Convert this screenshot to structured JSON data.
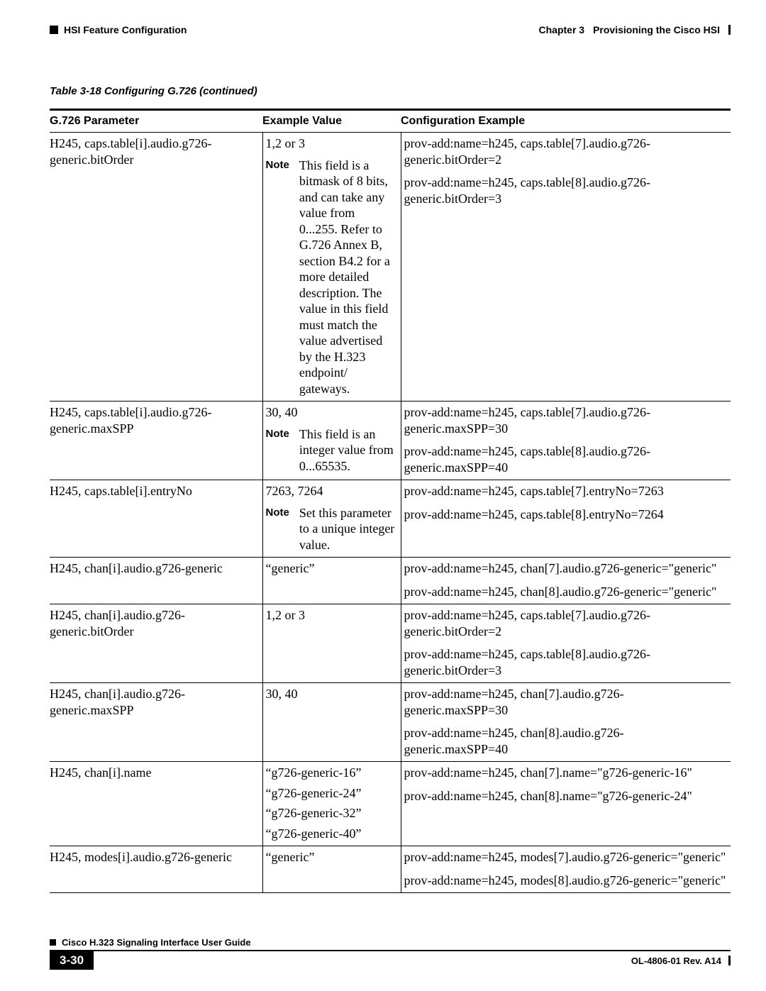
{
  "header": {
    "section_title": "HSI Feature Configuration",
    "chapter_label": "Chapter 3",
    "chapter_title": "Provisioning the Cisco HSI"
  },
  "table_caption": "Table 3-18   Configuring G.726 (continued)",
  "columns": {
    "c1": "G.726 Parameter",
    "c2": "Example Value",
    "c3": "Configuration Example"
  },
  "note_label": "Note",
  "rows": [
    {
      "param": "H245, caps.table[i].audio.g726-generic.bitOrder",
      "example_value": "1,2 or 3",
      "note": "This field is a bitmask of 8 bits, and can take any value from 0...255. Refer to G.726 Annex B, section B4.2 for a more detailed description. The value in this field must match the value advertised by the H.323 endpoint/ gateways.",
      "config": [
        "prov-add:name=h245, caps.table[7].audio.g726-generic.bitOrder=2",
        "prov-add:name=h245, caps.table[8].audio.g726-generic.bitOrder=3"
      ]
    },
    {
      "param": "H245, caps.table[i].audio.g726-generic.maxSPP",
      "example_value": "30, 40",
      "note": "This field is an integer value from 0...65535.",
      "config": [
        "prov-add:name=h245, caps.table[7].audio.g726-generic.maxSPP=30",
        "prov-add:name=h245, caps.table[8].audio.g726-generic.maxSPP=40"
      ]
    },
    {
      "param": "H245, caps.table[i].entryNo",
      "example_value": "7263, 7264",
      "note": "Set this parameter to a unique integer value.",
      "config": [
        "prov-add:name=h245, caps.table[7].entryNo=7263",
        "prov-add:name=h245, caps.table[8].entryNo=7264"
      ]
    },
    {
      "param": "H245, chan[i].audio.g726-generic",
      "example_lines": [
        "“generic”"
      ],
      "config": [
        "prov-add:name=h245, chan[7].audio.g726-generic=\"generic\"",
        "prov-add:name=h245, chan[8].audio.g726-generic=\"generic\""
      ]
    },
    {
      "param": "H245, chan[i].audio.g726-generic.bitOrder",
      "example_lines": [
        "1,2 or 3"
      ],
      "config": [
        "prov-add:name=h245, caps.table[7].audio.g726-generic.bitOrder=2",
        "prov-add:name=h245, caps.table[8].audio.g726-generic.bitOrder=3"
      ]
    },
    {
      "param": "H245, chan[i].audio.g726-generic.maxSPP",
      "example_lines": [
        "30, 40"
      ],
      "config": [
        "prov-add:name=h245, chan[7].audio.g726-generic.maxSPP=30",
        "prov-add:name=h245, chan[8].audio.g726-generic.maxSPP=40"
      ]
    },
    {
      "param": "H245, chan[i].name",
      "example_lines": [
        "“g726-generic-16”",
        "“g726-generic-24”",
        "“g726-generic-32”",
        "“g726-generic-40”"
      ],
      "config": [
        "prov-add:name=h245, chan[7].name=\"g726-generic-16\"",
        "prov-add:name=h245, chan[8].name=\"g726-generic-24\""
      ]
    },
    {
      "param": "H245, modes[i].audio.g726-generic",
      "example_lines": [
        "“generic”"
      ],
      "config": [
        "prov-add:name=h245, modes[7].audio.g726-generic=\"generic\"",
        "prov-add:name=h245, modes[8].audio.g726-generic=\"generic\""
      ]
    }
  ],
  "footer": {
    "guide_title": "Cisco H.323 Signaling Interface User Guide",
    "page_number": "3-30",
    "doc_id": "OL-4806-01 Rev. A14"
  }
}
